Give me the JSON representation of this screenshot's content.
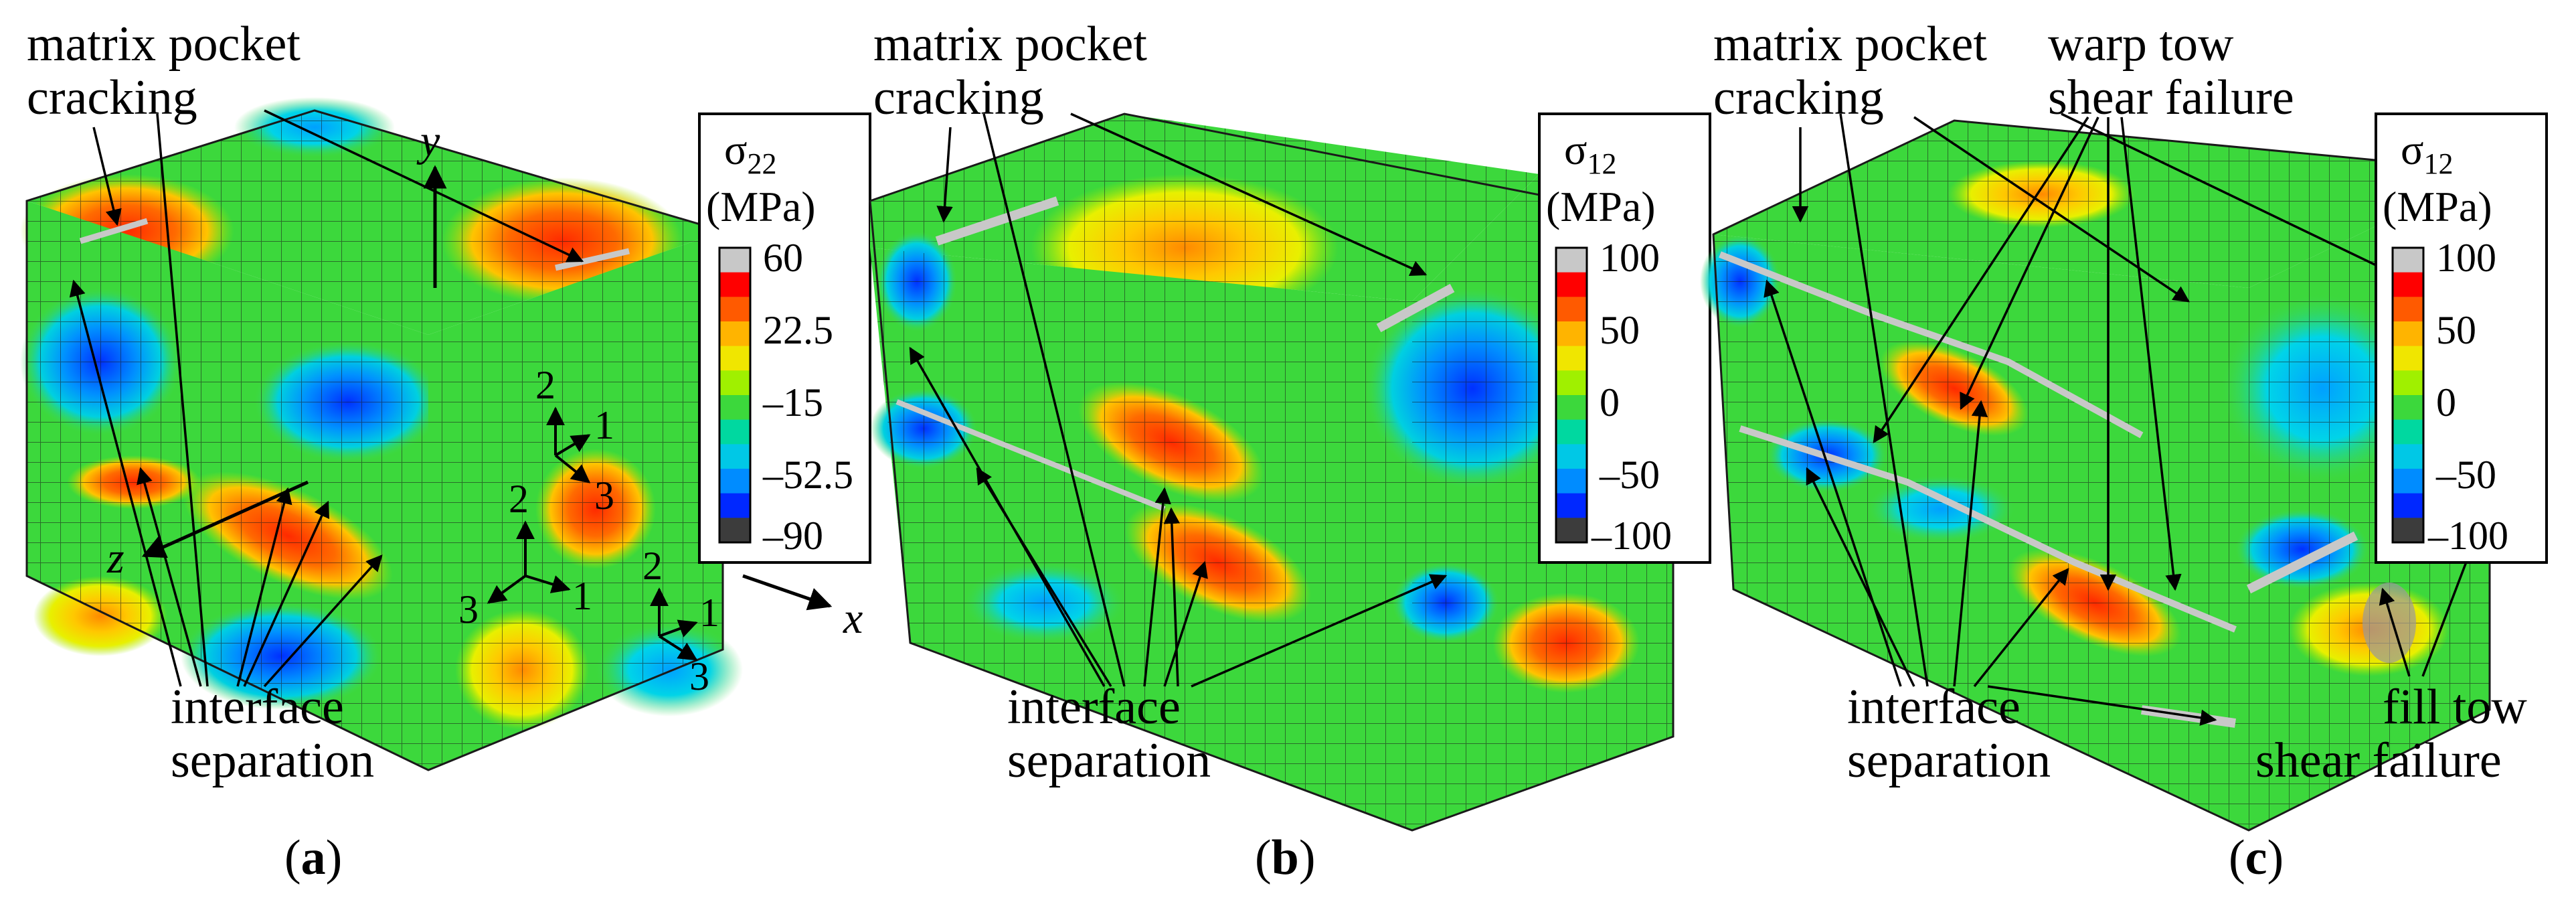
{
  "panels": [
    {
      "id": "a",
      "caption_open": "(",
      "caption_letter": "a",
      "caption_close": ")",
      "label_top_line1": "matrix pocket",
      "label_top_line2": "cracking",
      "label_bottom_line1": "interface",
      "label_bottom_line2": "separation",
      "legend_title_symbol": "σ",
      "legend_title_sub": "22",
      "legend_unit": "(MPa)",
      "legend_ticks": [
        "60",
        "22.5",
        "–15",
        "–52.5",
        "–90"
      ],
      "axes": {
        "x": "x",
        "y": "y",
        "z": "z"
      },
      "local_axes": [
        "2",
        "1",
        "3",
        "2",
        "1",
        "3",
        "2",
        "1",
        "3"
      ]
    },
    {
      "id": "b",
      "caption_open": "(",
      "caption_letter": "b",
      "caption_close": ")",
      "label_top_line1": "matrix pocket",
      "label_top_line2": "cracking",
      "label_bottom_line1": "interface",
      "label_bottom_line2": "separation",
      "legend_title_symbol": "σ",
      "legend_title_sub": "12",
      "legend_unit": "(MPa)",
      "legend_ticks": [
        "100",
        "50",
        "0",
        "–50",
        "–100"
      ]
    },
    {
      "id": "c",
      "caption_open": "(",
      "caption_letter": "c",
      "caption_close": ")",
      "label_top_line1": "matrix pocket",
      "label_top_line2": "cracking",
      "label_warp_line1": "warp tow",
      "label_warp_line2": "shear failure",
      "label_bottom_line1": "interface",
      "label_bottom_line2": "separation",
      "label_fill_line1": "fill tow",
      "label_fill_line2": "shear failure",
      "legend_title_symbol": "σ",
      "legend_title_sub": "12",
      "legend_unit": "(MPa)",
      "legend_ticks": [
        "100",
        "50",
        "0",
        "–50",
        "–100"
      ]
    }
  ],
  "colors": {
    "contour_scale": [
      "#c8c8c8",
      "#ff0000",
      "#ff5a00",
      "#ffb400",
      "#f0e600",
      "#a0f000",
      "#3cd83c",
      "#00d8a0",
      "#00c8e6",
      "#008cff",
      "#0028ff",
      "#3c3c3c"
    ],
    "mesh_line": "#1a1a1a",
    "background": "#ffffff"
  }
}
